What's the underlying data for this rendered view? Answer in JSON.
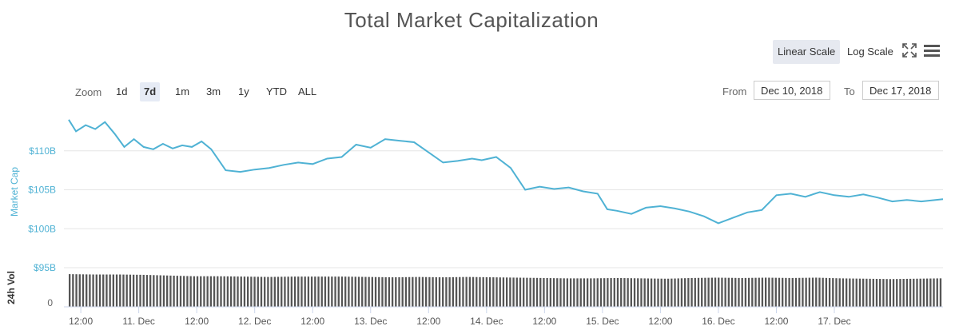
{
  "chart_data": {
    "type": "line",
    "title": "Total Market Capitalization",
    "scale_options": [
      "Linear Scale",
      "Log Scale"
    ],
    "active_scale": "Linear Scale",
    "zoom": {
      "label": "Zoom",
      "options": [
        "1d",
        "7d",
        "1m",
        "3m",
        "1y",
        "YTD",
        "ALL"
      ],
      "active": "7d"
    },
    "range": {
      "from_label": "From",
      "from": "Dec 10, 2018",
      "to_label": "To",
      "to": "Dec 17, 2018"
    },
    "x_ticks": [
      "12:00",
      "11. Dec",
      "12:00",
      "12. Dec",
      "12:00",
      "13. Dec",
      "12:00",
      "14. Dec",
      "12:00",
      "15. Dec",
      "12:00",
      "16. Dec",
      "12:00",
      "17. Dec"
    ],
    "xlim": [
      "2018-12-10T09:30",
      "2018-12-17T22:30"
    ],
    "series": [
      {
        "name": "Market Cap",
        "color": "#4fb2d4",
        "x": [
          "2018-12-10T09:30",
          "2018-12-10T11:00",
          "2018-12-10T13:00",
          "2018-12-10T15:00",
          "2018-12-10T17:00",
          "2018-12-10T19:00",
          "2018-12-10T21:00",
          "2018-12-10T23:00",
          "2018-12-11T01:00",
          "2018-12-11T03:00",
          "2018-12-11T05:00",
          "2018-12-11T07:00",
          "2018-12-11T09:00",
          "2018-12-11T11:00",
          "2018-12-11T13:00",
          "2018-12-11T15:00",
          "2018-12-11T18:00",
          "2018-12-11T21:00",
          "2018-12-12T00:00",
          "2018-12-12T03:00",
          "2018-12-12T06:00",
          "2018-12-12T09:00",
          "2018-12-12T12:00",
          "2018-12-12T15:00",
          "2018-12-12T18:00",
          "2018-12-12T21:00",
          "2018-12-13T00:00",
          "2018-12-13T03:00",
          "2018-12-13T06:00",
          "2018-12-13T09:00",
          "2018-12-13T12:00",
          "2018-12-13T15:00",
          "2018-12-13T18:00",
          "2018-12-13T21:00",
          "2018-12-13T23:00",
          "2018-12-14T02:00",
          "2018-12-14T05:00",
          "2018-12-14T08:00",
          "2018-12-14T11:00",
          "2018-12-14T14:00",
          "2018-12-14T17:00",
          "2018-12-14T20:00",
          "2018-12-14T23:00",
          "2018-12-15T01:00",
          "2018-12-15T03:00",
          "2018-12-15T06:00",
          "2018-12-15T09:00",
          "2018-12-15T12:00",
          "2018-12-15T15:00",
          "2018-12-15T18:00",
          "2018-12-15T21:00",
          "2018-12-16T00:00",
          "2018-12-16T03:00",
          "2018-12-16T06:00",
          "2018-12-16T09:00",
          "2018-12-16T12:00",
          "2018-12-16T15:00",
          "2018-12-16T18:00",
          "2018-12-16T21:00",
          "2018-12-17T00:00",
          "2018-12-17T03:00",
          "2018-12-17T06:00",
          "2018-12-17T09:00",
          "2018-12-17T12:00",
          "2018-12-17T15:00",
          "2018-12-17T18:00",
          "2018-12-17T22:30"
        ],
        "values": [
          114.0,
          112.5,
          113.3,
          112.8,
          113.7,
          112.2,
          110.5,
          111.5,
          110.5,
          110.2,
          110.9,
          110.3,
          110.7,
          110.5,
          111.2,
          110.2,
          107.5,
          107.3,
          107.6,
          107.8,
          108.2,
          108.5,
          108.3,
          109.0,
          109.2,
          110.8,
          110.4,
          111.5,
          111.3,
          111.1,
          109.8,
          108.5,
          108.7,
          109.0,
          108.8,
          109.2,
          107.8,
          105.0,
          105.4,
          105.1,
          105.3,
          104.8,
          104.5,
          102.5,
          102.3,
          101.9,
          102.7,
          102.9,
          102.6,
          102.2,
          101.6,
          100.7,
          101.4,
          102.1,
          102.4,
          104.3,
          104.5,
          104.1,
          104.7,
          104.3,
          104.1,
          104.4,
          104.0,
          103.5,
          103.7,
          103.5,
          103.8
        ]
      },
      {
        "name": "24h Vol",
        "color": "#555555",
        "values": [
          9.3,
          9.2,
          9.2,
          9.1,
          8.9,
          8.7,
          8.7,
          8.6,
          8.5,
          8.6,
          8.6,
          8.6,
          8.5,
          8.4,
          8.5,
          8.4,
          8.5,
          8.4,
          8.3,
          8.2,
          8.1,
          8.1,
          8.2,
          8.1,
          8.0,
          8.2,
          8.3,
          8.2,
          8.3,
          8.2,
          8.3,
          8.1,
          8.0,
          7.9,
          8.0,
          8.1
        ]
      }
    ],
    "y_ticks": [
      "$95B",
      "$100B",
      "$105B",
      "$110B"
    ],
    "y_tick_values": [
      95,
      100,
      105,
      110
    ],
    "ylabel": "Market Cap",
    "ylim": [
      95,
      115
    ],
    "vol_label": "24h Vol",
    "vol_tick": "0",
    "vol_ylim": [
      0,
      10
    ],
    "grid": true
  }
}
